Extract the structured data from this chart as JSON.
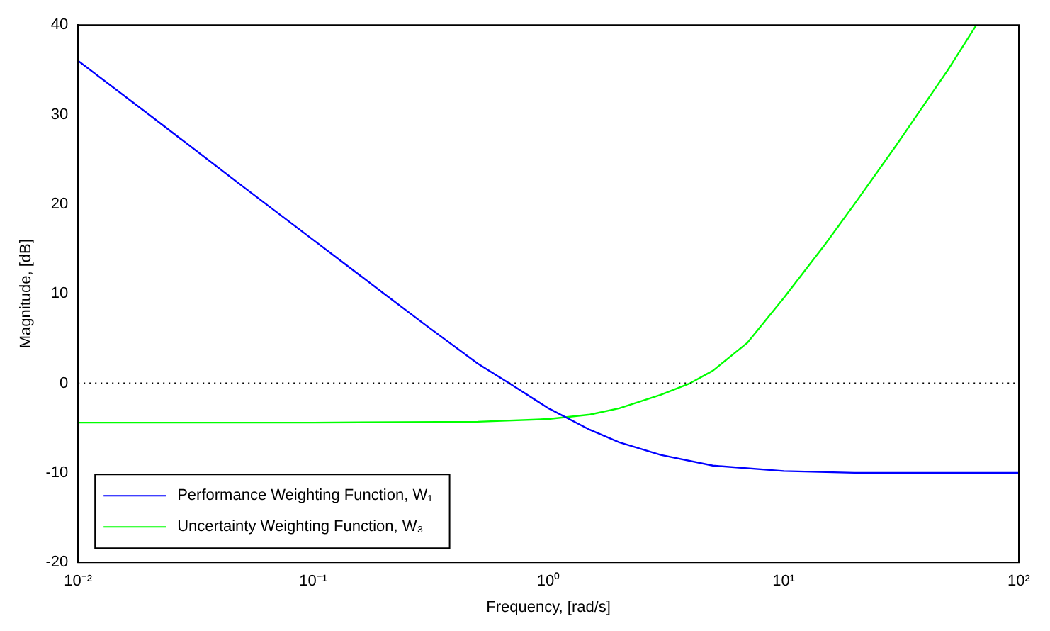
{
  "chart_data": {
    "type": "line",
    "xlabel": "Frequency, [rad/s]",
    "ylabel": "Magnitude, [dB]",
    "log": "x",
    "xlim": [
      0.01,
      100
    ],
    "ylim": [
      -20,
      40
    ],
    "xticks": [
      {
        "value": 0.01,
        "label": "10⁻²"
      },
      {
        "value": 0.1,
        "label": "10⁻¹"
      },
      {
        "value": 1,
        "label": "10⁰"
      },
      {
        "value": 10,
        "label": "10¹"
      },
      {
        "value": 100,
        "label": "10²"
      }
    ],
    "yticks": [
      -20,
      -10,
      0,
      10,
      20,
      30,
      40
    ],
    "grid": false,
    "legend": "bottom left",
    "marker": "none",
    "line_style": "solid",
    "ref_lines": [
      {
        "axis": "y",
        "value": 0,
        "color": "#000000",
        "line_style": "dotted"
      }
    ],
    "series": [
      {
        "name": "Performance Weighting Function, W₁",
        "color": "#0000ff",
        "x": [
          0.01,
          0.02,
          0.05,
          0.1,
          0.2,
          0.3,
          0.5,
          0.7,
          1,
          1.5,
          2,
          3,
          5,
          10,
          20,
          100
        ],
        "values": [
          36,
          30,
          22,
          16,
          10,
          6.5,
          2.2,
          -0.2,
          -2.8,
          -5.2,
          -6.6,
          -8,
          -9.2,
          -9.8,
          -10,
          -10
        ]
      },
      {
        "name": "Uncertainty Weighting Function, W₃",
        "color": "#00ff00",
        "x": [
          0.01,
          0.1,
          0.5,
          1,
          1.5,
          2,
          3,
          4,
          5,
          7,
          10,
          15,
          20,
          30,
          50,
          66
        ],
        "values": [
          -4.4,
          -4.4,
          -4.3,
          -4,
          -3.5,
          -2.8,
          -1.3,
          0,
          1.4,
          4.5,
          9.5,
          15.5,
          20,
          26.5,
          35,
          40
        ]
      }
    ]
  }
}
